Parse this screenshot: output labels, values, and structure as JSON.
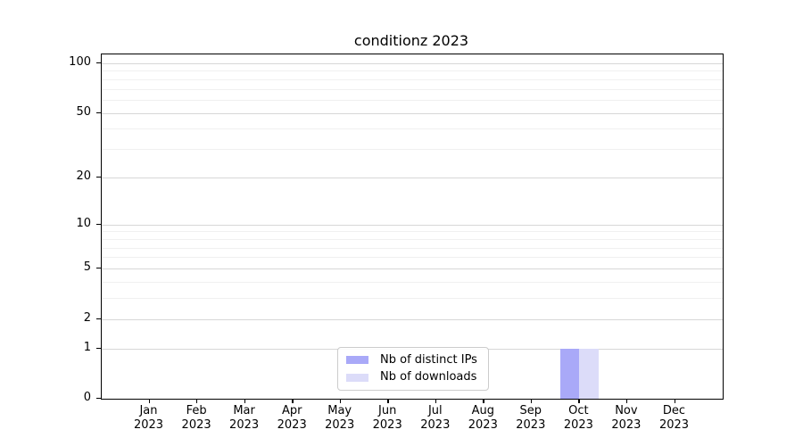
{
  "chart_data": {
    "type": "bar",
    "title": "conditionz 2023",
    "categories": [
      "Jan",
      "Feb",
      "Mar",
      "Apr",
      "May",
      "Jun",
      "Jul",
      "Aug",
      "Sep",
      "Oct",
      "Nov",
      "Dec"
    ],
    "x_axis": {
      "year_label": "2023"
    },
    "y_axis": {
      "scale": "log1p",
      "min": 0,
      "max": 113,
      "ticks": [
        0,
        1,
        2,
        5,
        10,
        20,
        50,
        100
      ],
      "minor_ticks": [
        3,
        4,
        6,
        7,
        8,
        9,
        30,
        40,
        60,
        70,
        80,
        90
      ]
    },
    "series": [
      {
        "name": "Nb of distinct IPs",
        "color": "#a9a9f8",
        "values": [
          0,
          0,
          0,
          0,
          0,
          0,
          0,
          0,
          0,
          1,
          0,
          0
        ]
      },
      {
        "name": "Nb of downloads",
        "color": "#dcdcf9",
        "values": [
          0,
          0,
          0,
          0,
          0,
          0,
          0,
          0,
          0,
          1,
          0,
          0
        ]
      }
    ],
    "legend": {
      "position": "lower-center"
    },
    "grid": {
      "major_color": "#d7d7d7",
      "minor_color": "#f0f0f0"
    },
    "axis_color": "#000000",
    "background": "#ffffff"
  }
}
